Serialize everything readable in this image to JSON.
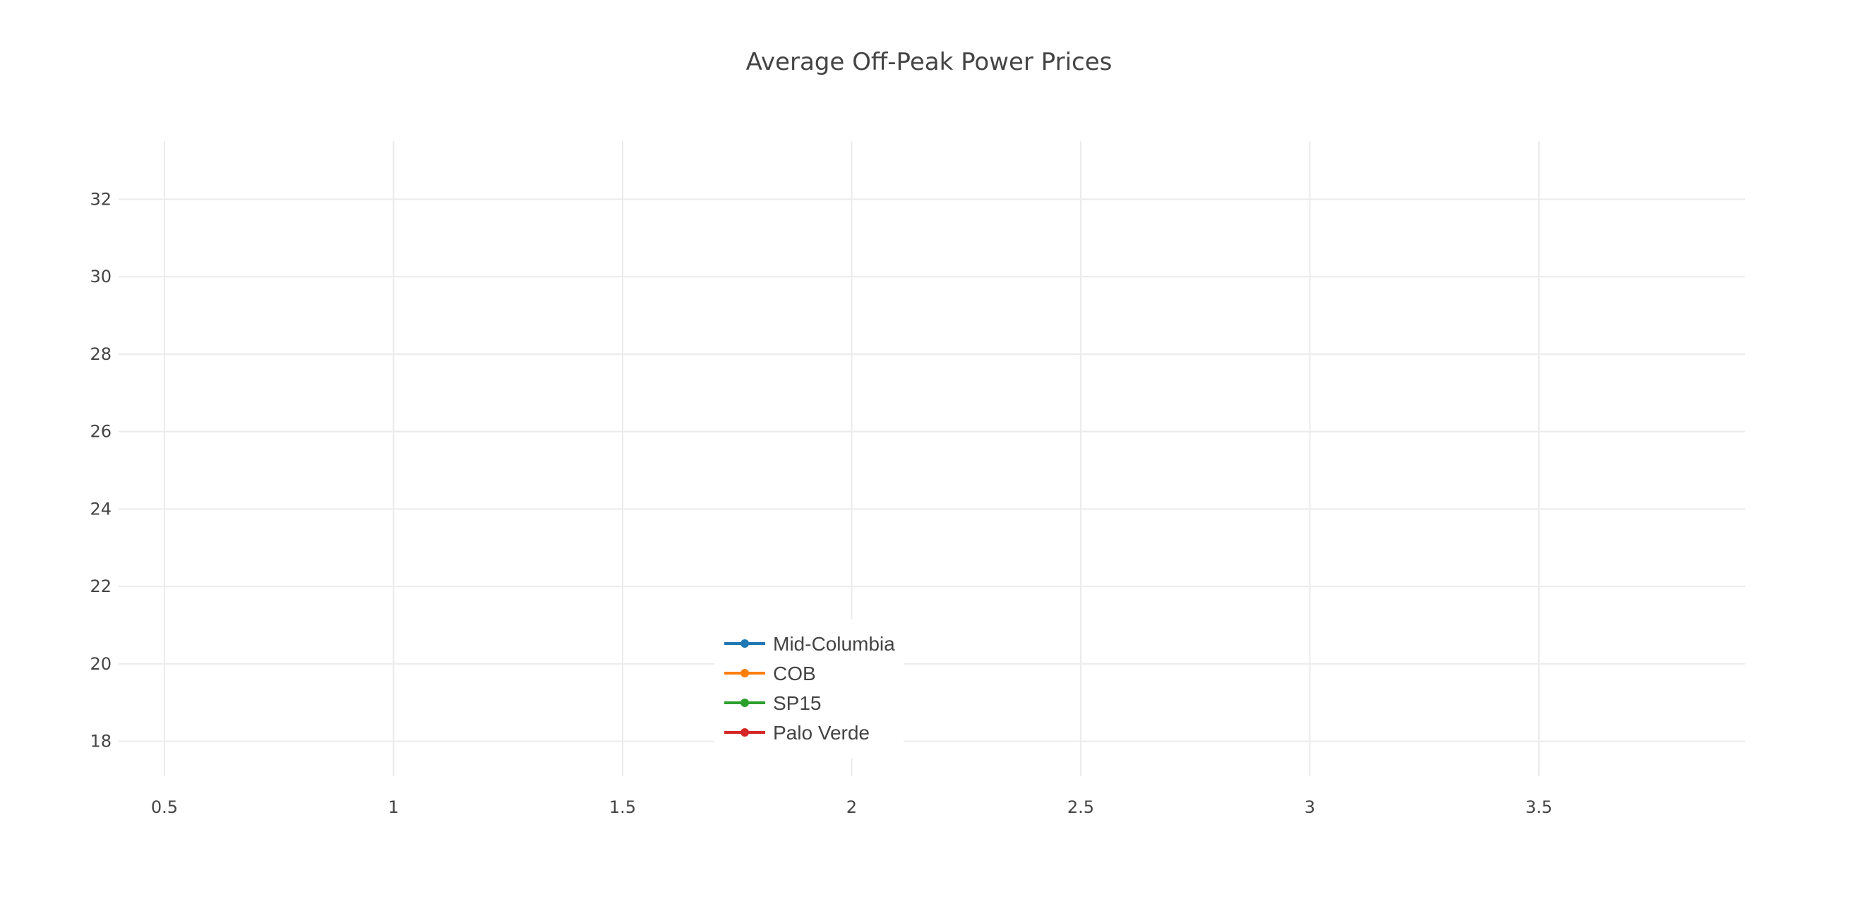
{
  "chart_data": {
    "type": "line",
    "title": "Average Off-Peak Power Prices",
    "xlabel": "",
    "ylabel": "",
    "xlim": [
      0.4,
      3.95
    ],
    "ylim": [
      17.1,
      33.5
    ],
    "x_ticks": [
      "0.5",
      "1",
      "1.5",
      "2",
      "2.5",
      "3",
      "3.5"
    ],
    "y_ticks": [
      "18",
      "20",
      "22",
      "24",
      "26",
      "28",
      "30",
      "32"
    ],
    "grid": true,
    "legend_position": "bottom-center",
    "series": [
      {
        "name": "Mid-Columbia",
        "color": "#1f77b4",
        "x": [],
        "y": []
      },
      {
        "name": "COB",
        "color": "#ff7f0e",
        "x": [],
        "y": []
      },
      {
        "name": "SP15",
        "color": "#2ca02c",
        "x": [],
        "y": []
      },
      {
        "name": "Palo Verde",
        "color": "#d62728",
        "x": [],
        "y": []
      }
    ]
  }
}
